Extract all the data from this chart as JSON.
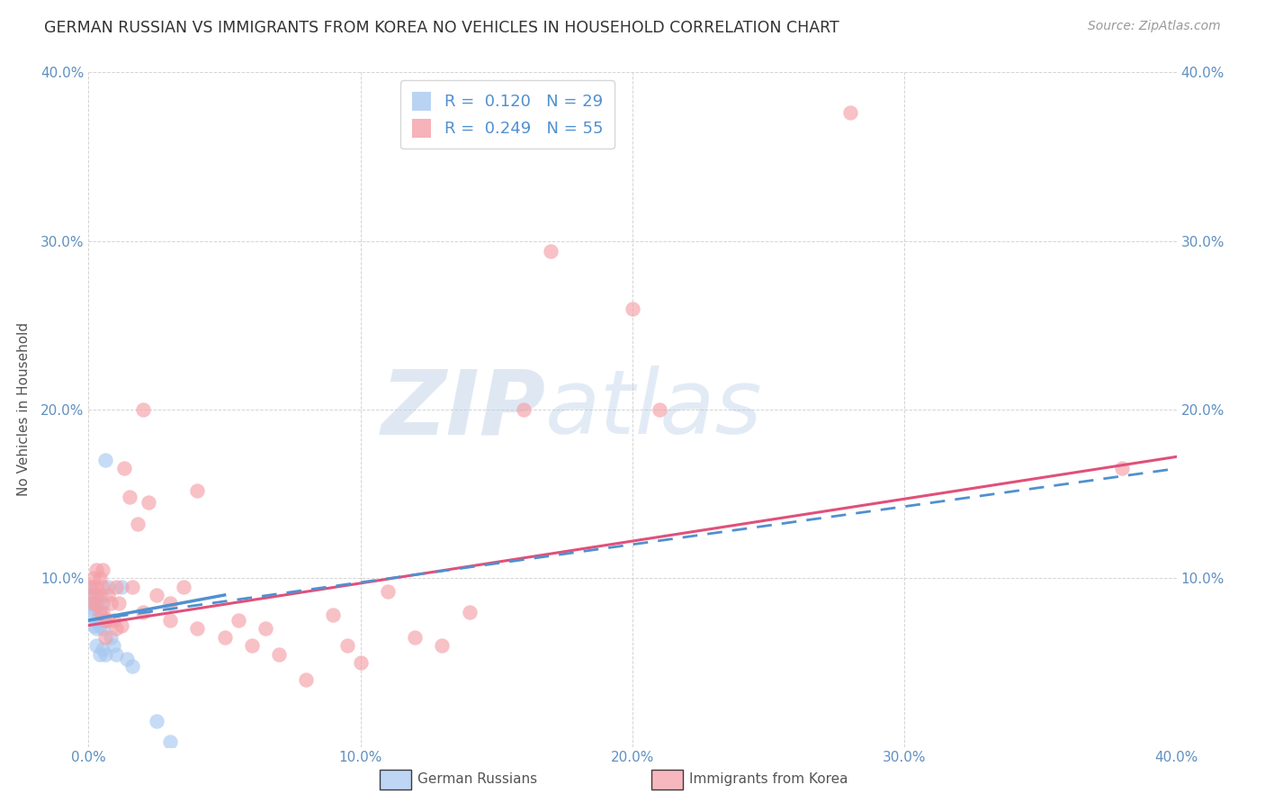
{
  "title": "GERMAN RUSSIAN VS IMMIGRANTS FROM KOREA NO VEHICLES IN HOUSEHOLD CORRELATION CHART",
  "source": "Source: ZipAtlas.com",
  "ylabel": "No Vehicles in Household",
  "xlim": [
    0.0,
    0.4
  ],
  "ylim": [
    0.0,
    0.4
  ],
  "watermark_zip": "ZIP",
  "watermark_atlas": "atlas",
  "legend_entries": [
    {
      "label_r": "R = ",
      "r_val": "0.120",
      "label_n": "  N = ",
      "n_val": "29",
      "color": "#a8c8f0"
    },
    {
      "label_r": "R = ",
      "r_val": "0.249",
      "label_n": "  N = ",
      "n_val": "55",
      "color": "#f4a0a8"
    }
  ],
  "german_russian": {
    "color": "#a8c8f0",
    "line_color": "#5090d0",
    "x": [
      0.001,
      0.001,
      0.002,
      0.002,
      0.002,
      0.002,
      0.003,
      0.003,
      0.003,
      0.003,
      0.003,
      0.004,
      0.004,
      0.004,
      0.005,
      0.005,
      0.005,
      0.006,
      0.006,
      0.006,
      0.007,
      0.008,
      0.009,
      0.01,
      0.012,
      0.014,
      0.016,
      0.025,
      0.03
    ],
    "y": [
      0.095,
      0.085,
      0.09,
      0.082,
      0.078,
      0.072,
      0.09,
      0.085,
      0.075,
      0.07,
      0.06,
      0.08,
      0.072,
      0.055,
      0.085,
      0.07,
      0.058,
      0.17,
      0.075,
      0.055,
      0.095,
      0.065,
      0.06,
      0.055,
      0.095,
      0.052,
      0.048,
      0.015,
      0.003
    ],
    "trend_x": [
      0.0,
      0.05
    ],
    "trend_y": [
      0.075,
      0.09
    ]
  },
  "korea": {
    "color": "#f4a0a8",
    "line_color": "#e0507a",
    "x": [
      0.001,
      0.002,
      0.002,
      0.002,
      0.003,
      0.003,
      0.003,
      0.004,
      0.004,
      0.004,
      0.005,
      0.005,
      0.005,
      0.006,
      0.006,
      0.007,
      0.007,
      0.008,
      0.009,
      0.01,
      0.01,
      0.011,
      0.012,
      0.013,
      0.015,
      0.016,
      0.018,
      0.02,
      0.02,
      0.022,
      0.025,
      0.03,
      0.03,
      0.035,
      0.04,
      0.04,
      0.05,
      0.055,
      0.06,
      0.065,
      0.07,
      0.08,
      0.09,
      0.095,
      0.1,
      0.11,
      0.12,
      0.13,
      0.14,
      0.16,
      0.17,
      0.2,
      0.21,
      0.28,
      0.38
    ],
    "y": [
      0.095,
      0.1,
      0.09,
      0.085,
      0.105,
      0.095,
      0.085,
      0.1,
      0.09,
      0.08,
      0.105,
      0.095,
      0.08,
      0.075,
      0.065,
      0.09,
      0.075,
      0.085,
      0.075,
      0.095,
      0.07,
      0.085,
      0.072,
      0.165,
      0.148,
      0.095,
      0.132,
      0.08,
      0.2,
      0.145,
      0.09,
      0.075,
      0.085,
      0.095,
      0.152,
      0.07,
      0.065,
      0.075,
      0.06,
      0.07,
      0.055,
      0.04,
      0.078,
      0.06,
      0.05,
      0.092,
      0.065,
      0.06,
      0.08,
      0.2,
      0.294,
      0.26,
      0.2,
      0.376,
      0.165
    ],
    "trend_x": [
      0.0,
      0.4
    ],
    "trend_y": [
      0.072,
      0.172
    ]
  },
  "dashed_trend_x": [
    0.0,
    0.4
  ],
  "dashed_trend_y": [
    0.075,
    0.165
  ],
  "background_color": "#ffffff",
  "grid_color": "#d0d0d0",
  "tick_color": "#6090c0",
  "title_color": "#333333",
  "source_color": "#999999"
}
